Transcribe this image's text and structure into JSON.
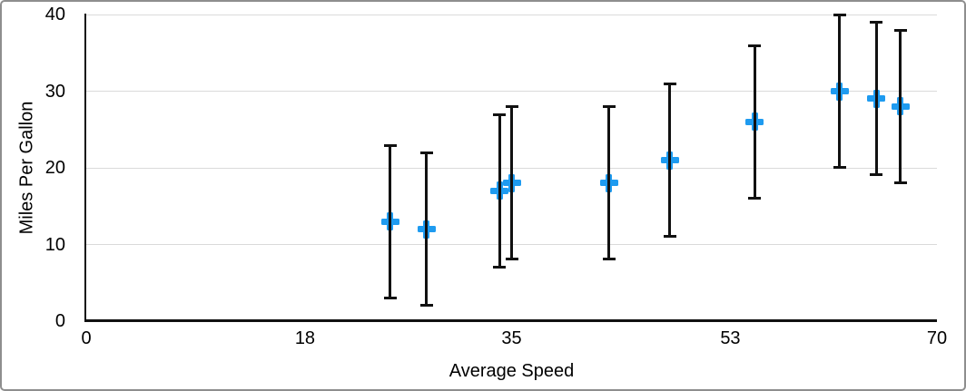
{
  "chart_data": {
    "type": "scatter",
    "title": "",
    "xlabel": "Average Speed",
    "ylabel": "Miles Per Gallon",
    "xlim": [
      0,
      70
    ],
    "ylim": [
      0,
      40
    ],
    "x_ticks": [
      0,
      18,
      35,
      53,
      70
    ],
    "y_ticks": [
      0,
      10,
      20,
      30,
      40
    ],
    "grid": "horizontal-only",
    "legend": "none",
    "marker": {
      "shape": "plus",
      "color": "#1E9BF0"
    },
    "error_bars": {
      "type": "symmetric",
      "plus": 10,
      "minus": 10,
      "color": "#111111"
    },
    "points": [
      {
        "x": 25,
        "y": 13,
        "err_low": 3,
        "err_high": 23
      },
      {
        "x": 28,
        "y": 12,
        "err_low": 2,
        "err_high": 22
      },
      {
        "x": 34,
        "y": 17,
        "err_low": 7,
        "err_high": 27
      },
      {
        "x": 35,
        "y": 18,
        "err_low": 8,
        "err_high": 28
      },
      {
        "x": 43,
        "y": 18,
        "err_low": 8,
        "err_high": 28
      },
      {
        "x": 48,
        "y": 21,
        "err_low": 11,
        "err_high": 31
      },
      {
        "x": 55,
        "y": 26,
        "err_low": 16,
        "err_high": 36
      },
      {
        "x": 62,
        "y": 30,
        "err_low": 20,
        "err_high": 40
      },
      {
        "x": 65,
        "y": 29,
        "err_low": 19,
        "err_high": 39
      },
      {
        "x": 67,
        "y": 28,
        "err_low": 18,
        "err_high": 38
      }
    ]
  }
}
